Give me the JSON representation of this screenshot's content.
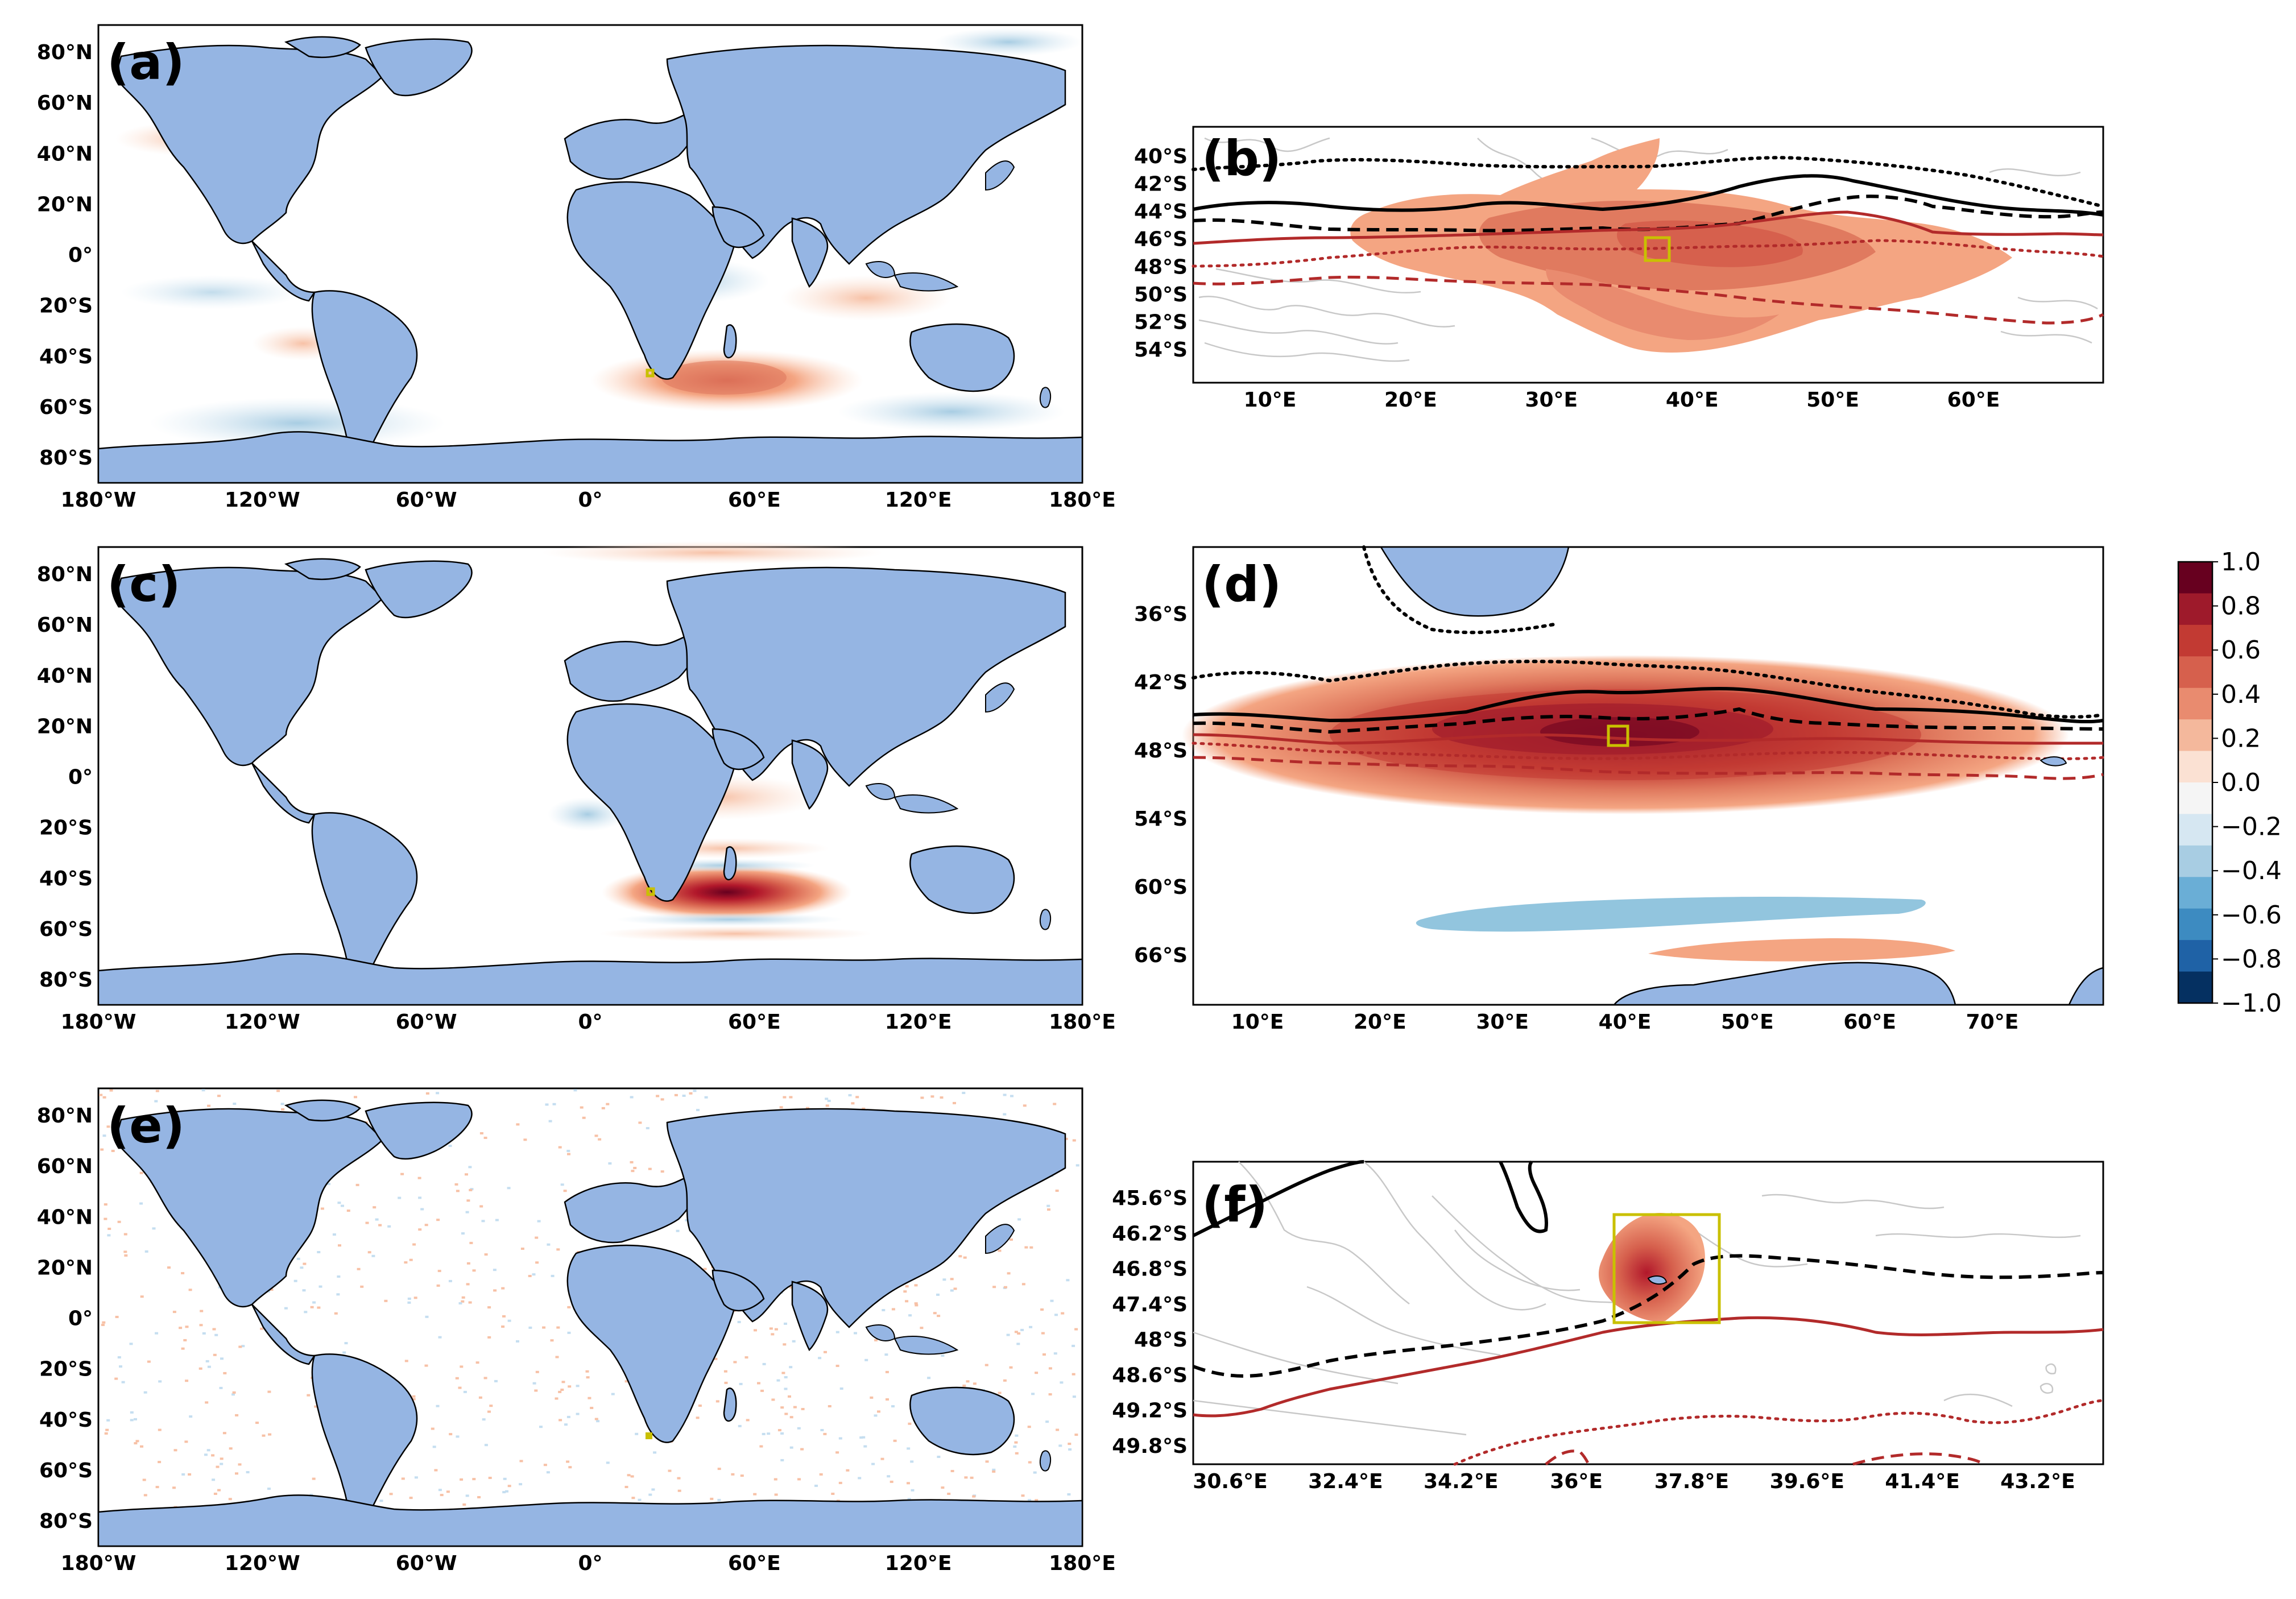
{
  "panels": {
    "a": {
      "label": "(a)"
    },
    "b": {
      "label": "(b)",
      "y_ticks": [
        "40°S",
        "42°S",
        "44°S",
        "46°S",
        "48°S",
        "50°S",
        "52°S",
        "54°S"
      ],
      "x_ticks": [
        "10°E",
        "20°E",
        "30°E",
        "40°E",
        "50°E",
        "60°E"
      ]
    },
    "c": {
      "label": "(c)"
    },
    "d": {
      "label": "(d)",
      "y_ticks": [
        "36°S",
        "42°S",
        "48°S",
        "54°S",
        "60°S",
        "66°S"
      ],
      "x_ticks": [
        "10°E",
        "20°E",
        "30°E",
        "40°E",
        "50°E",
        "60°E",
        "70°E"
      ]
    },
    "e": {
      "label": "(e)"
    },
    "f": {
      "label": "(f)",
      "y_ticks": [
        "45.6°S",
        "46.2°S",
        "46.8°S",
        "47.4°S",
        "48°S",
        "48.6°S",
        "49.2°S",
        "49.8°S"
      ],
      "x_ticks": [
        "30.6°E",
        "32.4°E",
        "34.2°E",
        "36°E",
        "37.8°E",
        "39.6°E",
        "41.4°E",
        "43.2°E"
      ]
    }
  },
  "global_map": {
    "y_ticks": [
      "80°N",
      "60°N",
      "40°N",
      "20°N",
      "0°",
      "20°S",
      "40°S",
      "60°S",
      "80°S"
    ],
    "x_ticks": [
      "180°W",
      "120°W",
      "60°W",
      "0°",
      "60°E",
      "120°E",
      "180°E"
    ]
  },
  "colorbar": {
    "ticks": [
      "1.0",
      "0.8",
      "0.6",
      "0.4",
      "0.2",
      "0.0",
      "−0.2",
      "−0.4",
      "−0.6",
      "−0.8",
      "−1.0"
    ],
    "colors": [
      "#67001f",
      "#9e1a2b",
      "#c23a33",
      "#d6604d",
      "#e98b6f",
      "#f4b89c",
      "#fbe1d3",
      "#f5f5f5",
      "#d6e7f2",
      "#a8cde3",
      "#6aaed6",
      "#3d8bc1",
      "#1f62a6",
      "#053061"
    ]
  },
  "chart_data": {
    "type": "map",
    "map_style": {
      "land_color": "#95b5e3",
      "positive_color": "#d6604d",
      "negative_color": "#4393c3",
      "marker_color": "#c9c000"
    },
    "colorbar_range": [
      -1.0,
      1.0
    ],
    "marker_location": {
      "lon_deg_e": 38,
      "lat_deg_s": 47
    },
    "panels": [
      "(a)",
      "(b)",
      "(c)",
      "(d)",
      "(e)",
      "(f)"
    ]
  }
}
